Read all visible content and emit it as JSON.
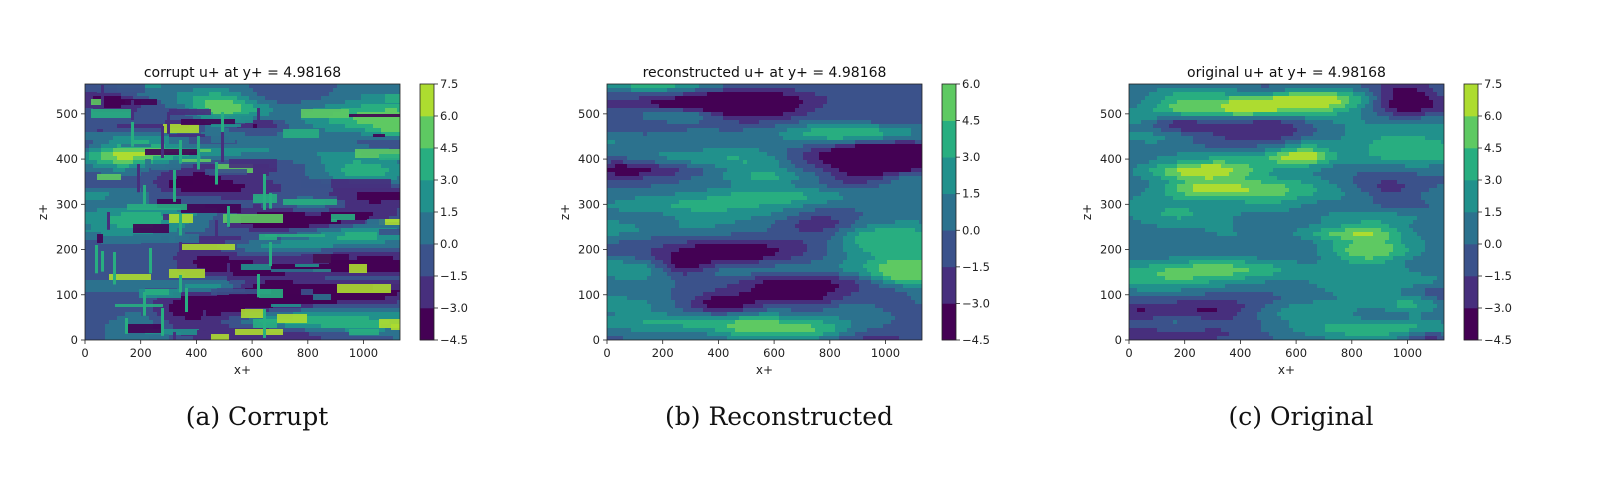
{
  "colormap": [
    "#440154",
    "#472f7d",
    "#3b528b",
    "#2c728e",
    "#21918c",
    "#28ae80",
    "#5ec962",
    "#addc30",
    "#fde725"
  ],
  "chart_data": [
    {
      "type": "heatmap",
      "title": "corrupt u+ at y+ = 4.98168",
      "xlabel": "x+",
      "ylabel": "z+",
      "xlim": [
        0,
        1131
      ],
      "ylim": [
        0,
        566
      ],
      "xticks": [
        "0",
        "200",
        "400",
        "600",
        "800",
        "1000"
      ],
      "yticks": [
        "0",
        "100",
        "200",
        "300",
        "400",
        "500"
      ],
      "colorbar_levels": [
        -4.5,
        -3.0,
        -1.5,
        0.0,
        1.5,
        3.0,
        4.5,
        6.0,
        7.5
      ],
      "colorbar_labels": [
        "7.5",
        "6.0",
        "4.5",
        "3.0",
        "1.5",
        "0.0",
        "−1.5",
        "−3.0",
        "−4.5"
      ],
      "caption": "(a) Corrupt"
    },
    {
      "type": "heatmap",
      "title": "reconstructed u+ at y+ = 4.98168",
      "xlabel": "x+",
      "ylabel": "z+",
      "xlim": [
        0,
        1131
      ],
      "ylim": [
        0,
        566
      ],
      "xticks": [
        "0",
        "200",
        "400",
        "600",
        "800",
        "1000"
      ],
      "yticks": [
        "0",
        "100",
        "200",
        "300",
        "400",
        "500"
      ],
      "colorbar_levels": [
        -4.5,
        -3.0,
        -1.5,
        0.0,
        1.5,
        3.0,
        4.5,
        6.0
      ],
      "colorbar_labels": [
        "6.0",
        "4.5",
        "3.0",
        "1.5",
        "0.0",
        "−1.5",
        "−3.0",
        "−4.5"
      ],
      "caption": "(b) Reconstructed"
    },
    {
      "type": "heatmap",
      "title": "original u+ at y+ = 4.98168",
      "xlabel": "x+",
      "ylabel": "z+",
      "xlim": [
        0,
        1131
      ],
      "ylim": [
        0,
        566
      ],
      "xticks": [
        "0",
        "200",
        "400",
        "600",
        "800",
        "1000"
      ],
      "yticks": [
        "0",
        "100",
        "200",
        "300",
        "400",
        "500"
      ],
      "colorbar_levels": [
        -4.5,
        -3.0,
        -1.5,
        0.0,
        1.5,
        3.0,
        4.5,
        6.0,
        7.5
      ],
      "colorbar_labels": [
        "7.5",
        "6.0",
        "4.5",
        "3.0",
        "1.5",
        "0.0",
        "−1.5",
        "−3.0",
        "−4.5"
      ],
      "caption": "(c) Original"
    }
  ]
}
